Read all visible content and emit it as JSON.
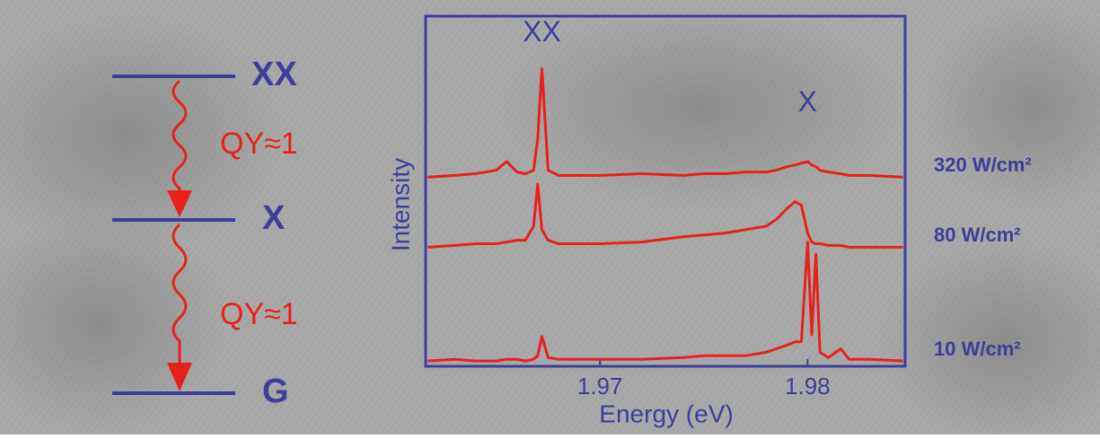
{
  "chart_data": {
    "type": "line",
    "x_label": "Energy (eV)",
    "y_label": "Intensity",
    "peak_labels": [
      {
        "text": "XX",
        "x": 1.9672,
        "y": 9.5
      },
      {
        "text": "X",
        "x": 1.98,
        "y": 7.5
      }
    ],
    "x": [
      1.9617,
      1.963,
      1.964,
      1.965,
      1.9655,
      1.966,
      1.9664,
      1.9668,
      1.967,
      1.9672,
      1.9675,
      1.968,
      1.97,
      1.972,
      1.974,
      1.975,
      1.976,
      1.977,
      1.978,
      1.9785,
      1.979,
      1.9794,
      1.9797,
      1.98,
      1.9802,
      1.9804,
      1.9806,
      1.981,
      1.9816,
      1.982,
      1.983,
      1.9846
    ],
    "series": [
      {
        "name": "320 W/cm²",
        "color": "#e8201c",
        "values": [
          5.4,
          5.45,
          5.5,
          5.6,
          5.85,
          5.55,
          5.5,
          5.6,
          6.5,
          8.5,
          5.6,
          5.45,
          5.45,
          5.5,
          5.45,
          5.5,
          5.5,
          5.55,
          5.55,
          5.6,
          5.7,
          5.75,
          5.8,
          5.85,
          5.75,
          5.7,
          5.6,
          5.55,
          5.5,
          5.45,
          5.45,
          5.4
        ]
      },
      {
        "name": "80 W/cm²",
        "color": "#e8201c",
        "values": [
          3.4,
          3.45,
          3.5,
          3.5,
          3.55,
          3.6,
          3.6,
          4.0,
          5.2,
          3.9,
          3.6,
          3.5,
          3.5,
          3.55,
          3.7,
          3.75,
          3.8,
          3.9,
          4.0,
          4.2,
          4.5,
          4.7,
          4.6,
          3.8,
          3.55,
          3.5,
          3.5,
          3.45,
          3.45,
          3.4,
          3.4,
          3.4
        ]
      },
      {
        "name": "10 W/cm²",
        "color": "#e8201c",
        "values": [
          0.15,
          0.2,
          0.15,
          0.15,
          0.2,
          0.2,
          0.15,
          0.2,
          0.3,
          0.85,
          0.25,
          0.2,
          0.2,
          0.2,
          0.25,
          0.3,
          0.3,
          0.3,
          0.4,
          0.5,
          0.6,
          0.7,
          0.7,
          3.55,
          0.9,
          3.2,
          0.4,
          0.25,
          0.5,
          0.2,
          0.2,
          0.15
        ]
      }
    ],
    "xlim": [
      1.9616,
      1.9847
    ],
    "ylim": [
      0,
      10
    ],
    "xticks": [
      1.97,
      1.98
    ],
    "axis_color": "#3b3f99",
    "label_color": "#3b3f99"
  },
  "diagram": {
    "levels": [
      "XX",
      "X",
      "G"
    ],
    "yields": [
      "QY≈1",
      "QY≈1"
    ]
  }
}
